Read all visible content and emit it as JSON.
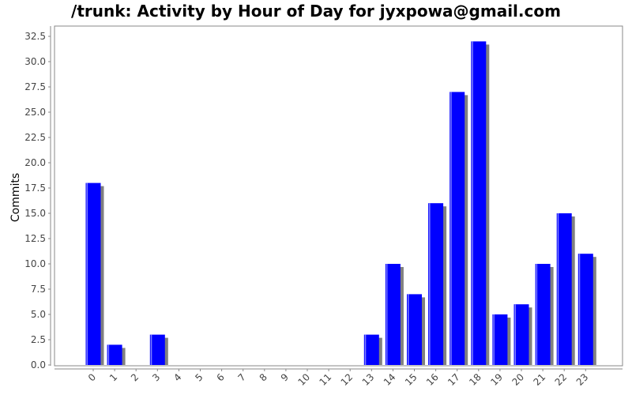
{
  "chart_data": {
    "type": "bar",
    "title": "/trunk: Activity by Hour of Day for jyxpowa@gmail.com",
    "xlabel": "",
    "ylabel": "Commits",
    "categories": [
      "0",
      "1",
      "2",
      "3",
      "4",
      "5",
      "6",
      "7",
      "8",
      "9",
      "10",
      "11",
      "12",
      "13",
      "14",
      "15",
      "16",
      "17",
      "18",
      "19",
      "20",
      "21",
      "22",
      "23"
    ],
    "values": [
      18,
      2,
      0,
      3,
      0,
      0,
      0,
      0,
      0,
      0,
      0,
      0,
      0,
      3,
      10,
      7,
      16,
      27,
      32,
      5,
      6,
      10,
      15,
      11
    ],
    "ylim": [
      0,
      33.5
    ],
    "yticks": [
      "0.0",
      "2.5",
      "5.0",
      "7.5",
      "10.0",
      "12.5",
      "15.0",
      "17.5",
      "20.0",
      "22.5",
      "25.0",
      "27.5",
      "30.0",
      "32.5"
    ],
    "grid": false,
    "colors": {
      "bar": "#0000ff",
      "bar_highlight": "#8080ff",
      "shadow": "#808080",
      "axis": "#888888"
    }
  }
}
